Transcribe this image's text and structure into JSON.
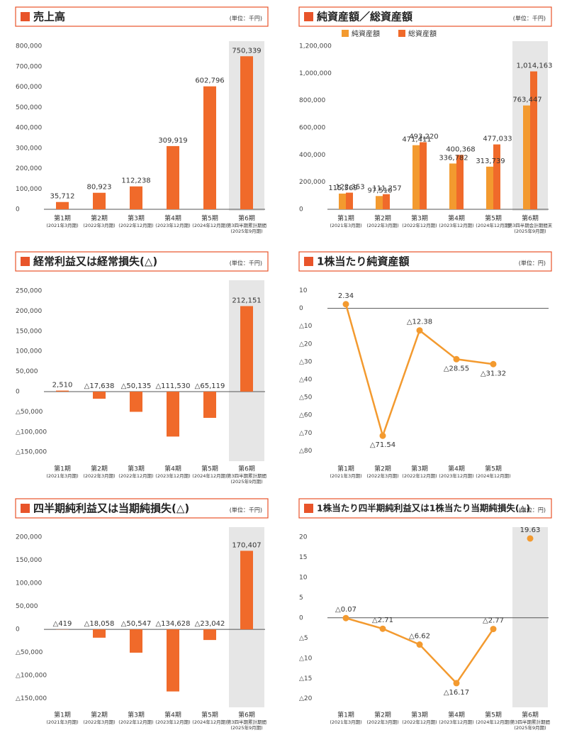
{
  "chart_data": [
    {
      "type": "bar",
      "title": "売上高",
      "unit": "(単位：千円)",
      "color": "#f06a2a",
      "highlight": true,
      "categories": [
        "第1期",
        "第2期",
        "第3期",
        "第4期",
        "第5期",
        "第6期"
      ],
      "category_sublabels": [
        [
          "(2021年3月期)"
        ],
        [
          "(2022年3月期)"
        ],
        [
          "(2022年12月期)"
        ],
        [
          "(2023年12月期)"
        ],
        [
          "(2024年12月期)"
        ],
        [
          "第3四半期累計期間",
          "(2025年9月期)"
        ]
      ],
      "values": [
        35712,
        80923,
        112238,
        309919,
        602796,
        750339
      ],
      "value_labels": [
        "35,712",
        "80,923",
        "112,238",
        "309,919",
        "602,796",
        "750,339"
      ],
      "ylim": [
        0,
        800000
      ],
      "yticks": [
        0,
        {
          "value": 100000,
          "label": "100,000"
        },
        {
          "value": 200000,
          "label": "200,000"
        },
        {
          "value": 300000,
          "label": "300,000"
        },
        {
          "value": 400000,
          "label": "400,000"
        },
        {
          "value": 500000,
          "label": "500,000"
        },
        {
          "value": 600000,
          "label": "600,000"
        },
        {
          "value": 700000,
          "label": "700,000"
        },
        {
          "value": 800000,
          "label": "800,000"
        }
      ]
    },
    {
      "type": "bar",
      "title": "純資産額／総資産額",
      "unit": "(単位：千円)",
      "highlight": true,
      "categories": [
        "第1期",
        "第2期",
        "第3期",
        "第4期",
        "第5期",
        "第6期"
      ],
      "category_sublabels": [
        [
          "(2021年3月期)"
        ],
        [
          "(2022年3月期)"
        ],
        [
          "(2022年12月期)"
        ],
        [
          "(2023年12月期)"
        ],
        [
          "(2024年12月期)"
        ],
        [
          "第3四半期会計期間末",
          "(2025年9月期)"
        ]
      ],
      "series": [
        {
          "name": "純資産額",
          "color": "#f39a2f",
          "values": [
            115569,
            97510,
            471411,
            336782,
            313739,
            763447
          ],
          "value_labels": [
            "115,569",
            "97,510",
            "471,411",
            "336,782",
            "313,739",
            "763,447"
          ]
        },
        {
          "name": "総資産額",
          "color": "#f06a2a",
          "values": [
            122353,
            111257,
            493220,
            400368,
            477033,
            1014163
          ],
          "value_labels": [
            "122,353",
            "111,257",
            "493,220",
            "400,368",
            "477,033",
            "1,014,163"
          ]
        }
      ],
      "ylim": [
        0,
        1200000
      ],
      "yticks": [
        0,
        {
          "value": 200000,
          "label": "200,000"
        },
        {
          "value": 400000,
          "label": "400,000"
        },
        {
          "value": 600000,
          "label": "600,000"
        },
        {
          "value": 800000,
          "label": "800,000"
        },
        {
          "value": 1000000,
          "label": "1,000,000"
        },
        {
          "value": 1200000,
          "label": "1,200,000"
        }
      ]
    },
    {
      "type": "bar",
      "title": "経常利益又は経常損失(△)",
      "unit": "(単位：千円)",
      "color": "#f06a2a",
      "highlight": true,
      "categories": [
        "第1期",
        "第2期",
        "第3期",
        "第4期",
        "第5期",
        "第6期"
      ],
      "category_sublabels": [
        [
          "(2021年3月期)"
        ],
        [
          "(2022年3月期)"
        ],
        [
          "(2022年12月期)"
        ],
        [
          "(2023年12月期)"
        ],
        [
          "(2024年12月期)"
        ],
        [
          "第3四半期累計期間",
          "(2025年9月期)"
        ]
      ],
      "values": [
        2510,
        -17638,
        -50135,
        -111530,
        -65119,
        212151
      ],
      "value_labels": [
        "2,510",
        "△17,638",
        "△50,135",
        "△111,530",
        "△65,119",
        "212,151"
      ],
      "ylim": [
        -169000,
        264000
      ],
      "yticks": [
        {
          "value": -150000,
          "label": "△150,000"
        },
        {
          "value": -100000,
          "label": "△100,000"
        },
        {
          "value": -50000,
          "label": "△50,000"
        },
        0,
        {
          "value": 50000,
          "label": "50,000"
        },
        {
          "value": 100000,
          "label": "100,000"
        },
        {
          "value": 150000,
          "label": "150,000"
        },
        {
          "value": 200000,
          "label": "200,000"
        },
        {
          "value": 250000,
          "label": "250,000"
        }
      ]
    },
    {
      "type": "line",
      "title": "1株当たり純資産額",
      "unit": "(単位：円)",
      "color": "#f39a2f",
      "highlight": false,
      "categories": [
        "第1期",
        "第2期",
        "第3期",
        "第4期",
        "第5期"
      ],
      "category_sublabels": [
        [
          "(2021年3月期)"
        ],
        [
          "(2022年3月期)"
        ],
        [
          "(2022年12月期)"
        ],
        [
          "(2023年12月期)"
        ],
        [
          "(2024年12月期)"
        ]
      ],
      "values": [
        2.34,
        -71.54,
        -12.38,
        -28.55,
        -31.32
      ],
      "value_labels": [
        "2.34",
        "△71.54",
        "△12.38",
        "△28.55",
        "△31.32"
      ],
      "ylim": [
        -85,
        13
      ],
      "yticks": [
        {
          "value": -80,
          "label": "△80"
        },
        {
          "value": -70,
          "label": "△70"
        },
        {
          "value": -60,
          "label": "△60"
        },
        {
          "value": -50,
          "label": "△50"
        },
        {
          "value": -40,
          "label": "△40"
        },
        {
          "value": -30,
          "label": "△30"
        },
        {
          "value": -20,
          "label": "△20"
        },
        {
          "value": -10,
          "label": "△10"
        },
        0,
        10
      ]
    },
    {
      "type": "bar",
      "title": "四半期純利益又は当期純損失(△)",
      "unit": "(単位：千円)",
      "color": "#f06a2a",
      "highlight": true,
      "categories": [
        "第1期",
        "第2期",
        "第3期",
        "第4期",
        "第5期",
        "第6期"
      ],
      "category_sublabels": [
        [
          "(2021年3月期)"
        ],
        [
          "(2022年3月期)"
        ],
        [
          "(2022年12月期)"
        ],
        [
          "(2023年12月期)"
        ],
        [
          "(2024年12月期)"
        ],
        [
          "第3四半期累計期間",
          "(2025年9月期)"
        ]
      ],
      "values": [
        -419,
        -18058,
        -50547,
        -134628,
        -23042,
        170407
      ],
      "value_labels": [
        "△419",
        "△18,058",
        "△50,547",
        "△134,628",
        "△23,042",
        "170,407"
      ],
      "ylim": [
        -166000,
        211000
      ],
      "yticks": [
        {
          "value": -150000,
          "label": "△150,000"
        },
        {
          "value": -100000,
          "label": "△100,000"
        },
        {
          "value": -50000,
          "label": "△50,000"
        },
        0,
        {
          "value": 50000,
          "label": "50,000"
        },
        {
          "value": 100000,
          "label": "100,000"
        },
        {
          "value": 150000,
          "label": "150,000"
        },
        {
          "value": 200000,
          "label": "200,000"
        }
      ]
    },
    {
      "type": "line",
      "title": "1株当たり四半期純利益又は1株当たり当期純損失(△)",
      "unit": "(単位：円)",
      "color": "#f39a2f",
      "highlight": true,
      "categories": [
        "第1期",
        "第2期",
        "第3期",
        "第4期",
        "第5期",
        "第6期"
      ],
      "category_sublabels": [
        [
          "(2021年3月期)"
        ],
        [
          "(2022年3月期)"
        ],
        [
          "(2022年12月期)"
        ],
        [
          "(2023年12月期)"
        ],
        [
          "(2024年12月期)"
        ],
        [
          "第3四半期累計期間",
          "(2025年9月期)"
        ]
      ],
      "values": [
        -0.07,
        -2.71,
        -6.62,
        -16.17,
        -2.77,
        19.63
      ],
      "value_labels": [
        "△0.07",
        "△2.71",
        "△6.62",
        "△16.17",
        "△2.77",
        "19.63"
      ],
      "ylim": [
        -21.8,
        21.2
      ],
      "yticks": [
        {
          "value": -20,
          "label": "△20"
        },
        {
          "value": -15,
          "label": "△15"
        },
        {
          "value": -10,
          "label": "△10"
        },
        {
          "value": -5,
          "label": "△5"
        },
        0,
        5,
        10,
        15,
        20
      ]
    }
  ]
}
